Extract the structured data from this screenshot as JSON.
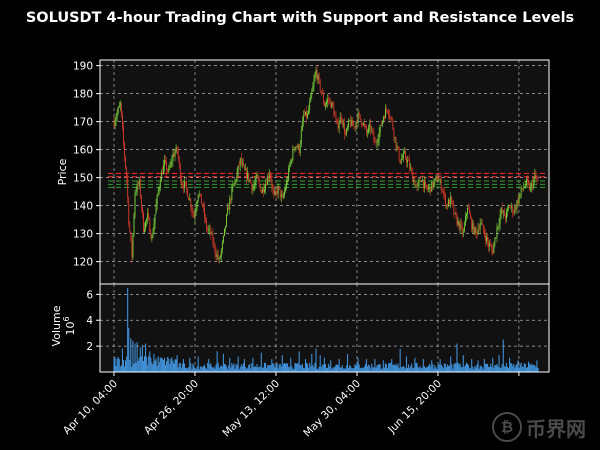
{
  "colors": {
    "background": "#000000",
    "panel_bg": "#111111",
    "axis": "#ffffff",
    "grid": "#b0b0b0",
    "candle_up": "#7bd23a",
    "candle_down": "#d23a2a",
    "volume": "#3f8fd6",
    "resistance": "#ff3030",
    "support": "#2e9e2e"
  },
  "watermark": {
    "logo": "₿",
    "text": "币界网"
  },
  "chart_data": {
    "type": "candlestick",
    "title": "SOLUSDT 4-hour Trading Chart with Support and Resistance Levels",
    "ylabel": "Price",
    "volume_ylabel": "Volume",
    "volume_exponent": "10",
    "volume_exponent_power": "6",
    "ylim": [
      112,
      192
    ],
    "yticks": [
      120,
      130,
      140,
      150,
      160,
      170,
      180,
      190
    ],
    "volume_ylim": [
      0,
      6.8
    ],
    "volume_yticks": [
      2,
      4,
      6
    ],
    "xticks": [
      "Apr 10, 04:00",
      "Apr 26, 20:00",
      "May 13, 12:00",
      "May 30, 04:00",
      "Jun 15, 20:00",
      ""
    ],
    "grid": true,
    "levels": [
      {
        "kind": "resistance",
        "value": 151.5
      },
      {
        "kind": "resistance",
        "value": 150.3
      },
      {
        "kind": "support",
        "value": 148.8
      },
      {
        "kind": "support",
        "value": 147.6
      },
      {
        "kind": "support",
        "value": 146.5
      }
    ],
    "price_path": [
      [
        0,
        170
      ],
      [
        3,
        173
      ],
      [
        6,
        176
      ],
      [
        9,
        162
      ],
      [
        12,
        150
      ],
      [
        14,
        135
      ],
      [
        17,
        122
      ],
      [
        20,
        145
      ],
      [
        24,
        148
      ],
      [
        28,
        132
      ],
      [
        32,
        136
      ],
      [
        36,
        128
      ],
      [
        40,
        140
      ],
      [
        44,
        150
      ],
      [
        48,
        155
      ],
      [
        52,
        152
      ],
      [
        56,
        158
      ],
      [
        60,
        160
      ],
      [
        64,
        148
      ],
      [
        68,
        147
      ],
      [
        72,
        142
      ],
      [
        76,
        136
      ],
      [
        80,
        145
      ],
      [
        84,
        140
      ],
      [
        88,
        132
      ],
      [
        92,
        130
      ],
      [
        96,
        124
      ],
      [
        100,
        120
      ],
      [
        104,
        128
      ],
      [
        108,
        138
      ],
      [
        112,
        145
      ],
      [
        116,
        150
      ],
      [
        120,
        156
      ],
      [
        124,
        152
      ],
      [
        128,
        150
      ],
      [
        132,
        146
      ],
      [
        136,
        150
      ],
      [
        140,
        145
      ],
      [
        144,
        148
      ],
      [
        148,
        152
      ],
      [
        152,
        143
      ],
      [
        156,
        146
      ],
      [
        160,
        142
      ],
      [
        164,
        148
      ],
      [
        168,
        156
      ],
      [
        172,
        162
      ],
      [
        176,
        160
      ],
      [
        180,
        172
      ],
      [
        184,
        172
      ],
      [
        188,
        180
      ],
      [
        192,
        188
      ],
      [
        196,
        182
      ],
      [
        200,
        176
      ],
      [
        204,
        178
      ],
      [
        208,
        175
      ],
      [
        212,
        168
      ],
      [
        216,
        172
      ],
      [
        220,
        165
      ],
      [
        224,
        170
      ],
      [
        228,
        168
      ],
      [
        232,
        172
      ],
      [
        236,
        170
      ],
      [
        240,
        166
      ],
      [
        244,
        168
      ],
      [
        248,
        162
      ],
      [
        252,
        166
      ],
      [
        256,
        172
      ],
      [
        260,
        175
      ],
      [
        264,
        170
      ],
      [
        268,
        162
      ],
      [
        272,
        156
      ],
      [
        276,
        158
      ],
      [
        280,
        155
      ],
      [
        284,
        150
      ],
      [
        288,
        146
      ],
      [
        292,
        150
      ],
      [
        296,
        146
      ],
      [
        300,
        146
      ],
      [
        304,
        148
      ],
      [
        308,
        150
      ],
      [
        312,
        146
      ],
      [
        316,
        140
      ],
      [
        320,
        142
      ],
      [
        324,
        136
      ],
      [
        328,
        133
      ],
      [
        332,
        130
      ],
      [
        336,
        140
      ],
      [
        340,
        133
      ],
      [
        344,
        130
      ],
      [
        348,
        134
      ],
      [
        352,
        130
      ],
      [
        356,
        126
      ],
      [
        360,
        124
      ],
      [
        364,
        132
      ],
      [
        368,
        138
      ],
      [
        372,
        136
      ],
      [
        376,
        140
      ],
      [
        380,
        138
      ],
      [
        384,
        142
      ],
      [
        388,
        146
      ],
      [
        392,
        148
      ],
      [
        396,
        146
      ],
      [
        400,
        150
      ],
      [
        404,
        148
      ]
    ],
    "volume_base": 0.45,
    "volume_spikes": [
      [
        5,
        1.0
      ],
      [
        8,
        1.8
      ],
      [
        11,
        0.9
      ],
      [
        13,
        6.5
      ],
      [
        14,
        3.4
      ],
      [
        16,
        2.6
      ],
      [
        18,
        2.4
      ],
      [
        20,
        2.2
      ],
      [
        22,
        2.3
      ],
      [
        25,
        1.9
      ],
      [
        27,
        2.1
      ],
      [
        30,
        2.2
      ],
      [
        34,
        1.6
      ],
      [
        38,
        1.4
      ],
      [
        42,
        1.2
      ],
      [
        48,
        1.1
      ],
      [
        54,
        1.0
      ],
      [
        60,
        1.3
      ],
      [
        66,
        1.0
      ],
      [
        72,
        1.1
      ],
      [
        80,
        1.2
      ],
      [
        90,
        1.0
      ],
      [
        98,
        1.6
      ],
      [
        104,
        1.4
      ],
      [
        110,
        1.1
      ],
      [
        118,
        1.2
      ],
      [
        124,
        1.0
      ],
      [
        132,
        1.1
      ],
      [
        140,
        1.5
      ],
      [
        150,
        1.0
      ],
      [
        160,
        1.3
      ],
      [
        168,
        1.1
      ],
      [
        176,
        1.6
      ],
      [
        182,
        1.0
      ],
      [
        188,
        1.4
      ],
      [
        192,
        1.8
      ],
      [
        196,
        1.3
      ],
      [
        200,
        1.1
      ],
      [
        206,
        0.9
      ],
      [
        214,
        1.0
      ],
      [
        222,
        1.4
      ],
      [
        232,
        1.1
      ],
      [
        240,
        1.0
      ],
      [
        248,
        1.0
      ],
      [
        256,
        0.9
      ],
      [
        264,
        1.0
      ],
      [
        272,
        1.8
      ],
      [
        278,
        1.2
      ],
      [
        286,
        1.1
      ],
      [
        294,
        1.0
      ],
      [
        302,
        0.9
      ],
      [
        310,
        1.0
      ],
      [
        320,
        1.2
      ],
      [
        326,
        2.2
      ],
      [
        332,
        1.3
      ],
      [
        340,
        1.0
      ],
      [
        346,
        0.9
      ],
      [
        352,
        1.0
      ],
      [
        360,
        1.1
      ],
      [
        366,
        1.3
      ],
      [
        370,
        2.5
      ],
      [
        376,
        1.1
      ],
      [
        384,
        0.9
      ],
      [
        394,
        0.8
      ],
      [
        402,
        0.9
      ]
    ],
    "candle_count": 404
  }
}
